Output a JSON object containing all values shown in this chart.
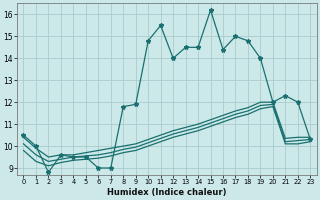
{
  "xlabel": "Humidex (Indice chaleur)",
  "bg_color": "#cce8e8",
  "grid_color": "#aacccc",
  "line_color": "#1a7070",
  "y_main": [
    10.5,
    10.0,
    8.8,
    9.6,
    9.5,
    9.5,
    9.0,
    9.0,
    11.8,
    11.9,
    14.8,
    15.5,
    14.0,
    14.5,
    14.5,
    16.2,
    14.4,
    15.0,
    14.8,
    14.0,
    12.0,
    12.3,
    12.0,
    10.3
  ],
  "y_line2": [
    10.4,
    9.9,
    9.5,
    9.6,
    9.6,
    9.7,
    9.8,
    9.9,
    10.0,
    10.1,
    10.3,
    10.5,
    10.7,
    10.85,
    11.0,
    11.2,
    11.4,
    11.6,
    11.75,
    12.0,
    12.0,
    10.35,
    10.4,
    10.4
  ],
  "y_line3": [
    10.1,
    9.6,
    9.3,
    9.4,
    9.5,
    9.55,
    9.6,
    9.7,
    9.85,
    9.95,
    10.15,
    10.35,
    10.55,
    10.7,
    10.85,
    11.05,
    11.25,
    11.45,
    11.6,
    11.85,
    11.9,
    10.2,
    10.25,
    10.3
  ],
  "y_line4": [
    9.8,
    9.3,
    9.1,
    9.25,
    9.35,
    9.4,
    9.45,
    9.55,
    9.7,
    9.8,
    10.0,
    10.2,
    10.4,
    10.55,
    10.7,
    10.9,
    11.1,
    11.3,
    11.45,
    11.7,
    11.8,
    10.1,
    10.1,
    10.2
  ],
  "ylim": [
    8.7,
    16.5
  ],
  "xlim": [
    -0.5,
    23.5
  ],
  "yticks": [
    9,
    10,
    11,
    12,
    13,
    14,
    15,
    16
  ],
  "xticks": [
    0,
    1,
    2,
    3,
    4,
    5,
    6,
    7,
    8,
    9,
    10,
    11,
    12,
    13,
    14,
    15,
    16,
    17,
    18,
    19,
    20,
    21,
    22,
    23
  ]
}
